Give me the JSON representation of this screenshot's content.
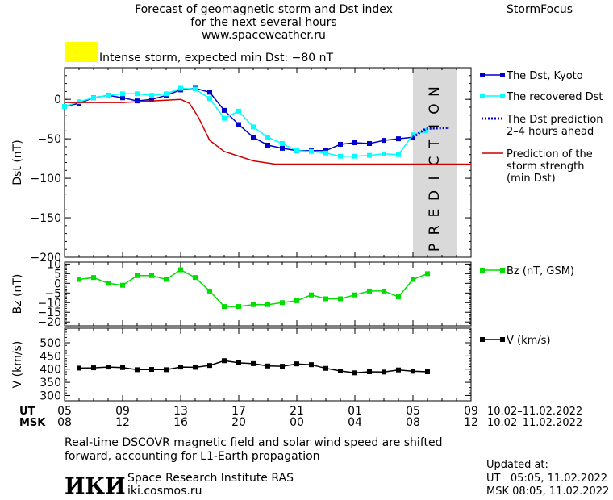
{
  "header": {
    "title_lines": [
      "Forecast of geomagnetic storm and Dst index",
      "for the next several hours",
      "www.spaceweather.ru"
    ],
    "brand": "StormFocus"
  },
  "alert": {
    "text": "Intense storm, expected min Dst: −80 nT",
    "color": "#ffff00"
  },
  "footer": {
    "note_lines": [
      "Real-time DSCOVR magnetic field and solar wind speed are shifted",
      "forward, accounting for L1-Earth propagation"
    ],
    "institute_logo": "ИКИ",
    "institute_name": "Space Research Institute RAS",
    "institute_site": "iki.cosmos.ru",
    "updated_label": "Updated at:",
    "updated_ut": "UT   05:05, 11.02.2022",
    "updated_msk": "MSK 08:05, 11.02.2022"
  },
  "chart_data": [
    {
      "type": "line",
      "ylabel": "Dst (nT)",
      "ylim": [
        -200,
        40
      ],
      "yticks": [
        0,
        -50,
        -100,
        -150,
        -200
      ],
      "ytick_labels": [
        "0",
        "−50",
        "−100",
        "−150",
        "−200"
      ],
      "xlim": [
        5,
        33
      ],
      "prediction_band": {
        "x": [
          29,
          32
        ],
        "label": "PREDICTION",
        "color": "#d9d9d9"
      },
      "series": [
        {
          "name": "The Dst, Kyoto",
          "color": "#0000cc",
          "marker": "square",
          "x": [
            5,
            6,
            7,
            8,
            9,
            10,
            11,
            12,
            13,
            14,
            15,
            16,
            17,
            18,
            19,
            20,
            21,
            22,
            23,
            24,
            25,
            26,
            27,
            28,
            29
          ],
          "y": [
            -9,
            -5,
            2,
            5,
            2,
            -2,
            0,
            5,
            12,
            14,
            9,
            -14,
            -32,
            -48,
            -58,
            -62,
            -65,
            -65,
            -65,
            -57,
            -55,
            -56,
            -52,
            -50,
            -48
          ]
        },
        {
          "name": "The recovered Dst",
          "color": "#00ffff",
          "marker": "square",
          "x": [
            5,
            6,
            7,
            8,
            9,
            10,
            11,
            12,
            13,
            14,
            15,
            16,
            17,
            18,
            19,
            20,
            21,
            22,
            23,
            24,
            25,
            26,
            27,
            28,
            29,
            29.9
          ],
          "y": [
            -9,
            -3,
            2,
            5,
            7,
            7,
            5,
            7,
            14,
            13,
            1,
            -24,
            -15,
            -35,
            -48,
            -56,
            -65,
            -66,
            -68,
            -72,
            -72,
            -71,
            -69,
            -70,
            -45,
            -40
          ]
        },
        {
          "name": "The Dst prediction 2–4 hours ahead",
          "color": "#0000cc",
          "dotted": true,
          "x": [
            29,
            29.9,
            31.5
          ],
          "y": [
            -48,
            -37,
            -36
          ]
        },
        {
          "name": "Prediction of the storm strength (min Dst)",
          "color": "#cc0000",
          "x": [
            5,
            9,
            13,
            13.6,
            14.2,
            15,
            16,
            18,
            19.5,
            33
          ],
          "y": [
            -4,
            -4,
            0,
            -5,
            -22,
            -52,
            -66,
            -78,
            -82,
            -82
          ]
        }
      ],
      "legend": [
        {
          "label_lines": [
            "The Dst, Kyoto"
          ],
          "color": "#0000cc",
          "style": "marker"
        },
        {
          "label_lines": [
            "The recovered Dst"
          ],
          "color": "#00ffff",
          "style": "marker"
        },
        {
          "label_lines": [
            "The Dst prediction",
            "2–4 hours ahead"
          ],
          "color": "#0000cc",
          "style": "dotted"
        },
        {
          "label_lines": [
            "Prediction of the",
            "storm strength",
            "(min Dst)"
          ],
          "color": "#cc0000",
          "style": "solid"
        }
      ]
    },
    {
      "type": "line",
      "ylabel": "Bz (nT)",
      "ylim": [
        -22,
        11
      ],
      "yticks": [
        10,
        5,
        0,
        -5,
        -10,
        -15,
        -20
      ],
      "ytick_labels": [
        "10",
        "5",
        "0",
        "−5",
        "−10",
        "−15",
        "−20"
      ],
      "xlim": [
        5,
        33
      ],
      "series": [
        {
          "name": "Bz (nT, GSM)",
          "color": "#00dd00",
          "x": [
            6,
            7,
            8,
            9,
            10,
            11,
            12,
            13,
            14,
            15,
            16,
            17,
            18,
            19,
            20,
            21,
            22,
            23,
            24,
            25,
            26,
            27,
            28,
            29,
            30
          ],
          "y": [
            2,
            3,
            0,
            -1,
            4,
            4,
            2,
            7,
            3,
            -4,
            -12,
            -12,
            -11,
            -11,
            -10,
            -9,
            -6,
            -8,
            -8,
            -6,
            -4,
            -4,
            -7,
            2,
            5
          ]
        }
      ],
      "legend": [
        {
          "label_lines": [
            "Bz (nT, GSM)"
          ],
          "color": "#00dd00",
          "style": "marker"
        }
      ]
    },
    {
      "type": "line",
      "ylabel": "V (km/s)",
      "ylim": [
        280,
        555
      ],
      "yticks": [
        500,
        450,
        400,
        350,
        300
      ],
      "ytick_labels": [
        "500",
        "450",
        "400",
        "350",
        "300"
      ],
      "xlim": [
        5,
        33
      ],
      "series": [
        {
          "name": "V (km/s)",
          "color": "#000000",
          "x": [
            6,
            7,
            8,
            9,
            10,
            11,
            12,
            13,
            14,
            15,
            16,
            17,
            18,
            19,
            20,
            21,
            22,
            23,
            24,
            25,
            26,
            27,
            28,
            29,
            30
          ],
          "y": [
            404,
            405,
            408,
            406,
            398,
            399,
            398,
            408,
            407,
            414,
            432,
            424,
            421,
            412,
            411,
            420,
            417,
            403,
            393,
            386,
            390,
            389,
            397,
            392,
            390
          ]
        }
      ],
      "legend": [
        {
          "label_lines": [
            "V (km/s)"
          ],
          "color": "#000000",
          "style": "marker"
        }
      ]
    }
  ],
  "time_axis": {
    "xlim": [
      5,
      33
    ],
    "ut_label": "UT",
    "msk_label": "MSK",
    "tick_positions": [
      5,
      9,
      13,
      17,
      21,
      25,
      29,
      33
    ],
    "ut_ticks": [
      "05",
      "09",
      "13",
      "17",
      "21",
      "01",
      "05",
      "09"
    ],
    "msk_ticks": [
      "08",
      "12",
      "16",
      "20",
      "00",
      "04",
      "08",
      "12"
    ],
    "ut_date_range": "10.02–11.02.2022",
    "msk_date_range": "10.02–11.02.2022"
  }
}
